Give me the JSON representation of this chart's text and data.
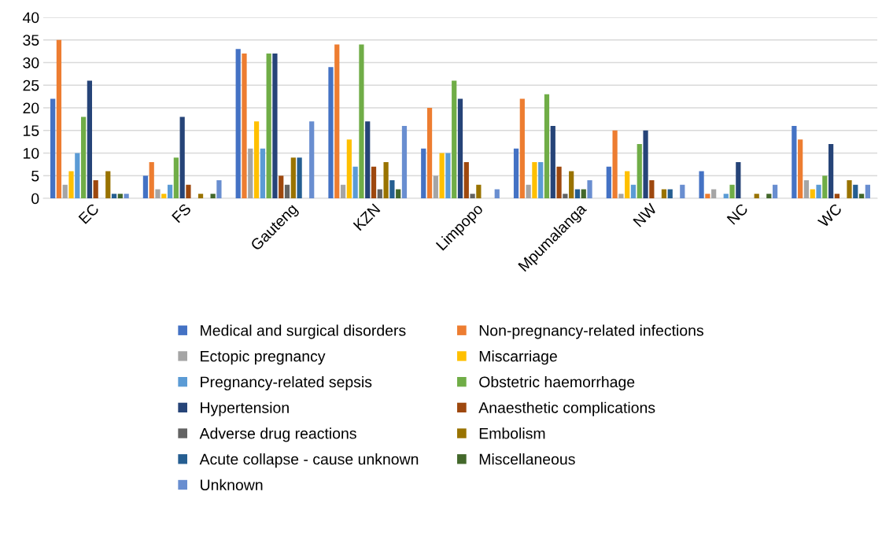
{
  "chart_data": {
    "type": "bar",
    "categories": [
      "EC",
      "FS",
      "Gauteng",
      "KZN",
      "Limpopo",
      "Mpumalanga",
      "NW",
      "NC",
      "WC"
    ],
    "series": [
      {
        "name": "Medical and surgical disorders",
        "color": "#4472c4",
        "values": [
          22,
          5,
          33,
          29,
          11,
          11,
          7,
          6,
          16
        ]
      },
      {
        "name": "Non-pregnancy-related infections",
        "color": "#ed7d31",
        "values": [
          35,
          8,
          32,
          34,
          20,
          22,
          15,
          1,
          13
        ]
      },
      {
        "name": "Ectopic pregnancy",
        "color": "#a5a5a5",
        "values": [
          3,
          2,
          11,
          3,
          5,
          3,
          1,
          2,
          4
        ]
      },
      {
        "name": "Miscarriage",
        "color": "#ffc000",
        "values": [
          6,
          1,
          17,
          13,
          10,
          8,
          6,
          null,
          2
        ]
      },
      {
        "name": "Pregnancy-related sepsis",
        "color": "#5b9bd5",
        "values": [
          10,
          3,
          11,
          7,
          10,
          8,
          3,
          1,
          3
        ]
      },
      {
        "name": "Obstetric haemorrhage",
        "color": "#70ad47",
        "values": [
          18,
          9,
          32,
          34,
          26,
          23,
          12,
          3,
          5
        ]
      },
      {
        "name": "Hypertension",
        "color": "#264478",
        "values": [
          26,
          18,
          32,
          17,
          22,
          16,
          15,
          8,
          12
        ]
      },
      {
        "name": "Anaesthetic complications",
        "color": "#9e480e",
        "values": [
          4,
          3,
          5,
          7,
          8,
          7,
          4,
          null,
          1
        ]
      },
      {
        "name": "Adverse drug reactions",
        "color": "#636363",
        "values": [
          null,
          null,
          3,
          2,
          1,
          1,
          null,
          null,
          null
        ]
      },
      {
        "name": "Embolism",
        "color": "#997300",
        "values": [
          6,
          1,
          9,
          8,
          3,
          6,
          2,
          1,
          4
        ]
      },
      {
        "name": "Acute collapse - cause unknown",
        "color": "#255e91",
        "values": [
          1,
          null,
          9,
          4,
          null,
          2,
          2,
          null,
          3
        ]
      },
      {
        "name": "Miscellaneous",
        "color": "#43682b",
        "values": [
          1,
          1,
          null,
          2,
          null,
          2,
          null,
          1,
          1
        ]
      },
      {
        "name": "Unknown",
        "color": "#698ed0",
        "values": [
          1,
          4,
          17,
          16,
          2,
          4,
          3,
          3,
          3
        ]
      }
    ],
    "ylim": [
      0,
      40
    ],
    "yticks": [
      0,
      5,
      10,
      15,
      20,
      25,
      30,
      35,
      40
    ],
    "grid": "y",
    "legend": "bottom"
  }
}
